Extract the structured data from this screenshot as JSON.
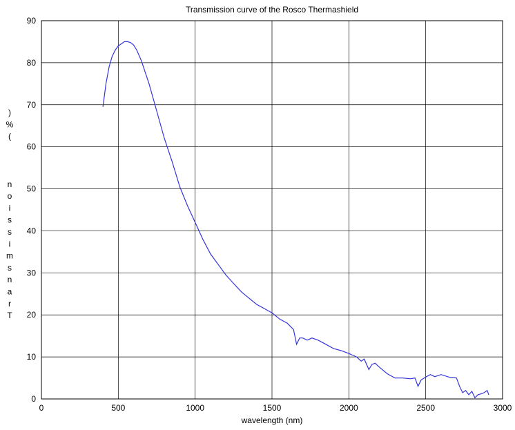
{
  "chart_data": {
    "type": "line",
    "title": "Transmission curve of the Rosco Thermashield",
    "xlabel": "wavelength (nm)",
    "ylabel_text": ")%(   noissimsnarT",
    "xlim": [
      0,
      3000
    ],
    "ylim": [
      0,
      90
    ],
    "xticks": [
      0,
      500,
      1000,
      1500,
      2000,
      2500,
      3000
    ],
    "yticks": [
      0,
      10,
      20,
      30,
      40,
      50,
      60,
      70,
      80,
      90
    ],
    "grid": true,
    "line_color": "#3333dd",
    "series": [
      {
        "x": [
          400,
          420,
          440,
          460,
          480,
          500,
          520,
          540,
          560,
          580,
          600,
          620,
          650,
          700,
          750,
          800,
          850,
          900,
          950,
          1000,
          1050,
          1100,
          1150,
          1200,
          1250,
          1300,
          1350,
          1400,
          1450,
          1500,
          1550,
          1600,
          1640,
          1660,
          1680,
          1700,
          1730,
          1760,
          1800,
          1850,
          1900,
          1950,
          2000,
          2050,
          2080,
          2100,
          2130,
          2150,
          2170,
          2200,
          2250,
          2300,
          2350,
          2400,
          2430,
          2450,
          2470,
          2500,
          2530,
          2560,
          2600,
          2650,
          2700,
          2720,
          2740,
          2760,
          2780,
          2800,
          2820,
          2840,
          2860,
          2880,
          2900,
          2910
        ],
        "y": [
          69.5,
          75,
          79,
          81.5,
          83,
          84,
          84.5,
          85,
          85,
          84.8,
          84.2,
          83,
          80.5,
          75,
          68.5,
          62,
          56.5,
          50.5,
          46,
          42,
          38,
          34.5,
          32,
          29.5,
          27.5,
          25.5,
          24,
          22.5,
          21.5,
          20.5,
          19,
          18,
          16.5,
          13,
          14.5,
          14.5,
          14,
          14.5,
          14,
          13,
          12,
          11.5,
          10.8,
          10,
          9,
          9.5,
          7,
          8.2,
          8.5,
          7.5,
          6,
          5,
          5,
          4.8,
          5,
          3,
          4.5,
          5.2,
          5.8,
          5.3,
          5.8,
          5.2,
          5,
          3,
          1.5,
          2,
          1,
          1.8,
          0.3,
          1,
          1.2,
          1.5,
          2,
          1
        ]
      }
    ]
  }
}
